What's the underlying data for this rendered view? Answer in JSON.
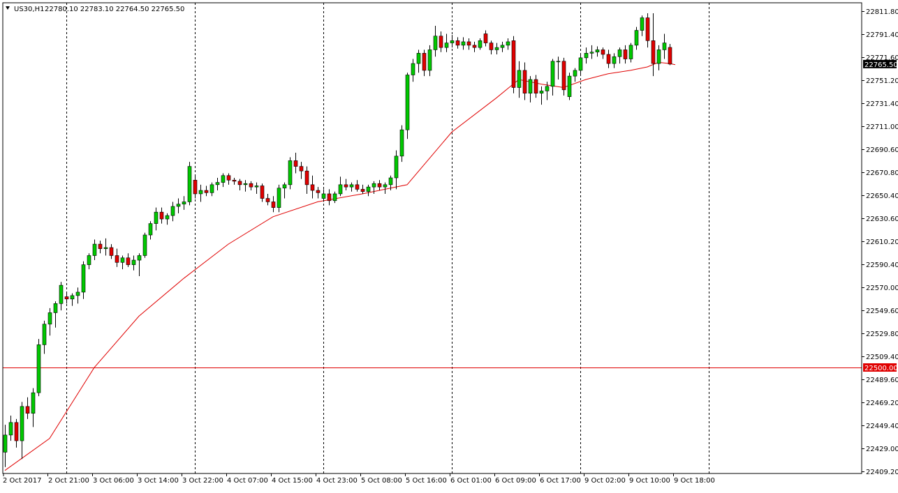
{
  "header": {
    "symbol_label": "US30,H1",
    "ohlc_text": "22780.10 22783.10 22764.50 22765.50"
  },
  "colors": {
    "bull": "#00c800",
    "bear": "#e00000",
    "ma_line": "#e00000",
    "hline": "#e00000",
    "label_bg": "#000000",
    "label_fg": "#ffffff",
    "grid_separator": "#000000"
  },
  "price_axis": {
    "ticks": [
      "22811.80",
      "22791.40",
      "22771.60",
      "22751.20",
      "22731.40",
      "22711.00",
      "22690.60",
      "22670.80",
      "22650.40",
      "22630.60",
      "22610.20",
      "22590.40",
      "22570.00",
      "22549.60",
      "22529.80",
      "22509.40",
      "22489.60",
      "22469.20",
      "22449.40",
      "22429.00",
      "22409.20"
    ],
    "current_price_label": "22765.50",
    "hline_label": "22500.00"
  },
  "time_axis": {
    "labels": [
      "2 Oct 2017",
      "2 Oct 21:00",
      "3 Oct 06:00",
      "3 Oct 14:00",
      "3 Oct 22:00",
      "4 Oct 07:00",
      "4 Oct 15:00",
      "4 Oct 23:00",
      "5 Oct 08:00",
      "5 Oct 16:00",
      "6 Oct 01:00",
      "6 Oct 09:00",
      "6 Oct 17:00",
      "9 Oct 02:00",
      "9 Oct 10:00",
      "9 Oct 18:00"
    ]
  },
  "chart_data": {
    "type": "candlestick",
    "title": "US30,H1",
    "ylim": [
      22409.2,
      22811.8
    ],
    "grid": false,
    "separator_bars": [
      11,
      34,
      57,
      80,
      103,
      126
    ],
    "horizontal_line": 22500.0,
    "series": [
      {
        "name": "US30,H1",
        "ohlc": [
          [
            22426.0,
            22450.0,
            22413.0,
            22441.0
          ],
          [
            22441.0,
            22458.0,
            22436.0,
            22452.0
          ],
          [
            22452.0,
            22455.0,
            22430.0,
            22436.0
          ],
          [
            22436.0,
            22470.0,
            22420.0,
            22466.0
          ],
          [
            22466.0,
            22474.0,
            22455.0,
            22460.0
          ],
          [
            22460.0,
            22482.0,
            22448.0,
            22478.0
          ],
          [
            22478.0,
            22525.0,
            22475.0,
            22520.0
          ],
          [
            22520.0,
            22541.0,
            22512.0,
            22538.0
          ],
          [
            22538.0,
            22552.0,
            22528.0,
            22548.0
          ],
          [
            22548.0,
            22558.0,
            22535.0,
            22556.0
          ],
          [
            22556.0,
            22575.0,
            22550.0,
            22572.0
          ],
          [
            22562.0,
            22566.0,
            22556.0,
            22560.0
          ],
          [
            22560.0,
            22565.0,
            22554.0,
            22563.0
          ],
          [
            22563.0,
            22570.0,
            22556.0,
            22566.0
          ],
          [
            22566.0,
            22593.0,
            22560.0,
            22590.0
          ],
          [
            22590.0,
            22600.0,
            22586.0,
            22598.0
          ],
          [
            22598.0,
            22612.0,
            22594.0,
            22608.0
          ],
          [
            22608.0,
            22611.0,
            22600.0,
            22604.0
          ],
          [
            22604.0,
            22613.0,
            22598.0,
            22605.0
          ],
          [
            22605.0,
            22608.0,
            22595.0,
            22598.0
          ],
          [
            22598.0,
            22604.0,
            22588.0,
            22592.0
          ],
          [
            22592.0,
            22598.0,
            22586.0,
            22596.0
          ],
          [
            22596.0,
            22600.0,
            22588.0,
            22590.0
          ],
          [
            22590.0,
            22598.0,
            22585.0,
            22594.0
          ],
          [
            22594.0,
            22600.0,
            22580.0,
            22598.0
          ],
          [
            22598.0,
            22618.0,
            22596.0,
            22616.0
          ],
          [
            22616.0,
            22628.0,
            22612.0,
            22626.0
          ],
          [
            22626.0,
            22640.0,
            22620.0,
            22636.0
          ],
          [
            22636.0,
            22640.0,
            22626.0,
            22630.0
          ],
          [
            22630.0,
            22635.0,
            22625.0,
            22633.0
          ],
          [
            22633.0,
            22645.0,
            22628.0,
            22641.0
          ],
          [
            22641.0,
            22648.0,
            22635.0,
            22643.0
          ],
          [
            22643.0,
            22650.0,
            22638.0,
            22645.0
          ],
          [
            22645.0,
            22680.0,
            22642.0,
            22676.0
          ],
          [
            22664.0,
            22669.0,
            22648.0,
            22652.0
          ],
          [
            22652.0,
            22660.0,
            22645.0,
            22655.0
          ],
          [
            22655.0,
            22659.0,
            22650.0,
            22653.0
          ],
          [
            22653.0,
            22662.0,
            22650.0,
            22660.0
          ],
          [
            22660.0,
            22666.0,
            22655.0,
            22662.0
          ],
          [
            22662.0,
            22670.0,
            22658.0,
            22668.0
          ],
          [
            22668.0,
            22670.0,
            22660.0,
            22664.0
          ],
          [
            22664.0,
            22666.0,
            22660.0,
            22663.0
          ],
          [
            22663.0,
            22665.0,
            22655.0,
            22660.0
          ],
          [
            22660.0,
            22664.0,
            22654.0,
            22661.0
          ],
          [
            22661.0,
            22663.0,
            22655.0,
            22658.0
          ],
          [
            22658.0,
            22662.0,
            22652.0,
            22659.0
          ],
          [
            22659.0,
            22661.0,
            22645.0,
            22648.0
          ],
          [
            22648.0,
            22652.0,
            22642.0,
            22645.0
          ],
          [
            22645.0,
            22650.0,
            22636.0,
            22640.0
          ],
          [
            22640.0,
            22660.0,
            22636.0,
            22657.0
          ],
          [
            22657.0,
            22662.0,
            22648.0,
            22660.0
          ],
          [
            22660.0,
            22684.0,
            22656.0,
            22681.0
          ],
          [
            22681.0,
            22688.0,
            22670.0,
            22676.0
          ],
          [
            22676.0,
            22680.0,
            22665.0,
            22672.0
          ],
          [
            22672.0,
            22676.0,
            22652.0,
            22660.0
          ],
          [
            22660.0,
            22668.0,
            22648.0,
            22655.0
          ],
          [
            22655.0,
            22658.0,
            22648.0,
            22653.0
          ],
          [
            22648.0,
            22656.0,
            22645.0,
            22652.0
          ],
          [
            22652.0,
            22656.0,
            22642.0,
            22646.0
          ],
          [
            22646.0,
            22654.0,
            22644.0,
            22652.0
          ],
          [
            22652.0,
            22667.0,
            22650.0,
            22660.0
          ],
          [
            22660.0,
            22665.0,
            22655.0,
            22658.0
          ],
          [
            22658.0,
            22662.0,
            22654.0,
            22660.0
          ],
          [
            22660.0,
            22664.0,
            22654.0,
            22656.0
          ],
          [
            22656.0,
            22660.0,
            22652.0,
            22654.0
          ],
          [
            22654.0,
            22660.0,
            22650.0,
            22658.0
          ],
          [
            22658.0,
            22663.0,
            22652.0,
            22661.0
          ],
          [
            22661.0,
            22664.0,
            22655.0,
            22658.0
          ],
          [
            22658.0,
            22662.0,
            22652.0,
            22660.0
          ],
          [
            22660.0,
            22668.0,
            22655.0,
            22666.0
          ],
          [
            22666.0,
            22690.0,
            22656.0,
            22685.0
          ],
          [
            22685.0,
            22712.0,
            22680.0,
            22708.0
          ],
          [
            22708.0,
            22758.0,
            22700.0,
            22756.0
          ],
          [
            22756.0,
            22770.0,
            22750.0,
            22766.0
          ],
          [
            22766.0,
            22778.0,
            22758.0,
            22775.0
          ],
          [
            22775.0,
            22778.0,
            22755.0,
            22760.0
          ],
          [
            22760.0,
            22782.0,
            22755.0,
            22778.0
          ],
          [
            22778.0,
            22799.0,
            22772.0,
            22790.0
          ],
          [
            22790.0,
            22794.0,
            22776.0,
            22780.0
          ],
          [
            22780.0,
            22792.0,
            22776.0,
            22784.0
          ],
          [
            22784.0,
            22791.0,
            22780.0,
            22786.0
          ],
          [
            22786.0,
            22789.0,
            22779.0,
            22782.0
          ],
          [
            22782.0,
            22789.0,
            22778.0,
            22785.0
          ],
          [
            22785.0,
            22788.0,
            22778.0,
            22782.0
          ],
          [
            22782.0,
            22785.0,
            22776.0,
            22780.0
          ],
          [
            22780.0,
            22788.0,
            22778.0,
            22786.0
          ],
          [
            22792.0,
            22795.0,
            22781.0,
            22784.0
          ],
          [
            22784.0,
            22786.0,
            22774.0,
            22778.0
          ],
          [
            22778.0,
            22784.0,
            22774.0,
            22780.0
          ],
          [
            22780.0,
            22785.0,
            22776.0,
            22782.0
          ],
          [
            22782.0,
            22788.0,
            22778.0,
            22785.0
          ],
          [
            22786.0,
            22790.0,
            22740.0,
            22745.0
          ],
          [
            22745.0,
            22768.0,
            22736.0,
            22760.0
          ],
          [
            22760.0,
            22767.0,
            22734.0,
            22740.0
          ],
          [
            22740.0,
            22755.0,
            22732.0,
            22752.0
          ],
          [
            22752.0,
            22756.0,
            22736.0,
            22740.0
          ],
          [
            22740.0,
            22746.0,
            22730.0,
            22742.0
          ],
          [
            22742.0,
            22750.0,
            22734.0,
            22746.0
          ],
          [
            22746.0,
            22770.0,
            22738.0,
            22768.0
          ],
          [
            22768.0,
            22772.0,
            22752.0,
            22768.0
          ],
          [
            22768.0,
            22771.0,
            22738.0,
            22743.0
          ],
          [
            22737.0,
            22758.0,
            22734.0,
            22755.0
          ],
          [
            22755.0,
            22762.0,
            22750.0,
            22760.0
          ],
          [
            22760.0,
            22774.0,
            22756.0,
            22771.0
          ],
          [
            22771.0,
            22780.0,
            22766.0,
            22775.0
          ],
          [
            22775.0,
            22782.0,
            22770.0,
            22776.0
          ],
          [
            22776.0,
            22781.0,
            22772.0,
            22778.0
          ],
          [
            22778.0,
            22780.0,
            22770.0,
            22774.0
          ],
          [
            22774.0,
            22778.0,
            22762.0,
            22766.0
          ],
          [
            22766.0,
            22775.0,
            22762.0,
            22772.0
          ],
          [
            22772.0,
            22780.0,
            22766.0,
            22778.0
          ],
          [
            22778.0,
            22782.0,
            22766.0,
            22770.0
          ],
          [
            22770.0,
            22784.0,
            22767.0,
            22782.0
          ],
          [
            22782.0,
            22798.0,
            22778.0,
            22795.0
          ],
          [
            22795.0,
            22808.0,
            22790.0,
            22806.0
          ],
          [
            22806.0,
            22810.0,
            22780.0,
            22786.0
          ],
          [
            22786.0,
            22810.0,
            22755.0,
            22766.0
          ],
          [
            22766.0,
            22782.0,
            22760.0,
            22778.0
          ],
          [
            22778.0,
            22792.0,
            22770.0,
            22784.0
          ],
          [
            22780.1,
            22783.1,
            22764.5,
            22765.5
          ]
        ]
      }
    ],
    "moving_average": [
      [
        0,
        22410.0
      ],
      [
        8,
        22438.0
      ],
      [
        16,
        22500.0
      ],
      [
        24,
        22545.0
      ],
      [
        32,
        22578.0
      ],
      [
        40,
        22608.0
      ],
      [
        48,
        22632.0
      ],
      [
        56,
        22645.0
      ],
      [
        64,
        22652.0
      ],
      [
        72,
        22660.0
      ],
      [
        80,
        22706.0
      ],
      [
        88,
        22736.0
      ],
      [
        92,
        22752.0
      ],
      [
        96,
        22748.0
      ],
      [
        100,
        22745.0
      ],
      [
        104,
        22752.0
      ],
      [
        108,
        22757.0
      ],
      [
        112,
        22760.0
      ],
      [
        115,
        22763.0
      ],
      [
        117,
        22767.0
      ],
      [
        119,
        22766.0
      ],
      [
        120,
        22765.0
      ]
    ]
  }
}
